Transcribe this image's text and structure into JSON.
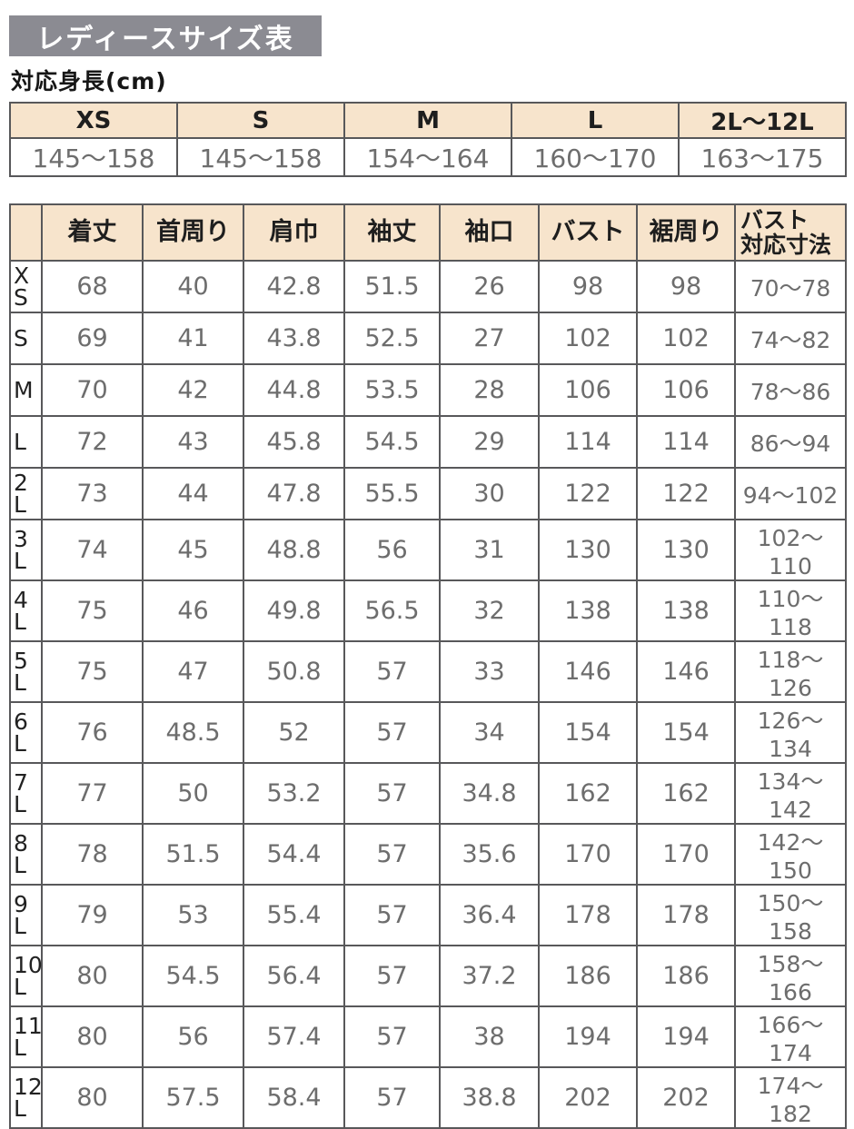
{
  "page": {
    "title": "レディースサイズ表",
    "subtitle": "対応身長(cm)"
  },
  "colors": {
    "title_bg": "#8b8b92",
    "title_text": "#ffffff",
    "header_bg": "#f7e4cc",
    "border": "#58585a",
    "value_text": "#6d6d6d",
    "header_text": "#1e1e1e"
  },
  "height_table": {
    "columns": [
      "XS",
      "S",
      "M",
      "L",
      "2L〜12L"
    ],
    "values": [
      "145〜158",
      "145〜158",
      "154〜164",
      "160〜170",
      "163〜175"
    ]
  },
  "size_table": {
    "corner": "",
    "columns": [
      "着丈",
      "首周り",
      "肩巾",
      "袖丈",
      "袖口",
      "バスト",
      "裾周り",
      "バスト\n対応寸法"
    ],
    "rows": [
      {
        "label": "XS",
        "values": [
          "68",
          "40",
          "42.8",
          "51.5",
          "26",
          "98",
          "98",
          "70〜78"
        ]
      },
      {
        "label": "S",
        "values": [
          "69",
          "41",
          "43.8",
          "52.5",
          "27",
          "102",
          "102",
          "74〜82"
        ]
      },
      {
        "label": "M",
        "values": [
          "70",
          "42",
          "44.8",
          "53.5",
          "28",
          "106",
          "106",
          "78〜86"
        ]
      },
      {
        "label": "L",
        "values": [
          "72",
          "43",
          "45.8",
          "54.5",
          "29",
          "114",
          "114",
          "86〜94"
        ]
      },
      {
        "label": "2L",
        "values": [
          "73",
          "44",
          "47.8",
          "55.5",
          "30",
          "122",
          "122",
          "94〜102"
        ]
      },
      {
        "label": "3L",
        "values": [
          "74",
          "45",
          "48.8",
          "56",
          "31",
          "130",
          "130",
          "102〜110"
        ]
      },
      {
        "label": "4L",
        "values": [
          "75",
          "46",
          "49.8",
          "56.5",
          "32",
          "138",
          "138",
          "110〜118"
        ]
      },
      {
        "label": "5L",
        "values": [
          "75",
          "47",
          "50.8",
          "57",
          "33",
          "146",
          "146",
          "118〜126"
        ]
      },
      {
        "label": "6L",
        "values": [
          "76",
          "48.5",
          "52",
          "57",
          "34",
          "154",
          "154",
          "126〜134"
        ]
      },
      {
        "label": "7L",
        "values": [
          "77",
          "50",
          "53.2",
          "57",
          "34.8",
          "162",
          "162",
          "134〜142"
        ]
      },
      {
        "label": "8L",
        "values": [
          "78",
          "51.5",
          "54.4",
          "57",
          "35.6",
          "170",
          "170",
          "142〜150"
        ]
      },
      {
        "label": "9L",
        "values": [
          "79",
          "53",
          "55.4",
          "57",
          "36.4",
          "178",
          "178",
          "150〜158"
        ]
      },
      {
        "label": "10L",
        "values": [
          "80",
          "54.5",
          "56.4",
          "57",
          "37.2",
          "186",
          "186",
          "158〜166"
        ]
      },
      {
        "label": "11L",
        "values": [
          "80",
          "56",
          "57.4",
          "57",
          "38",
          "194",
          "194",
          "166〜174"
        ]
      },
      {
        "label": "12L",
        "values": [
          "80",
          "57.5",
          "58.4",
          "57",
          "38.8",
          "202",
          "202",
          "174〜182"
        ]
      }
    ]
  }
}
